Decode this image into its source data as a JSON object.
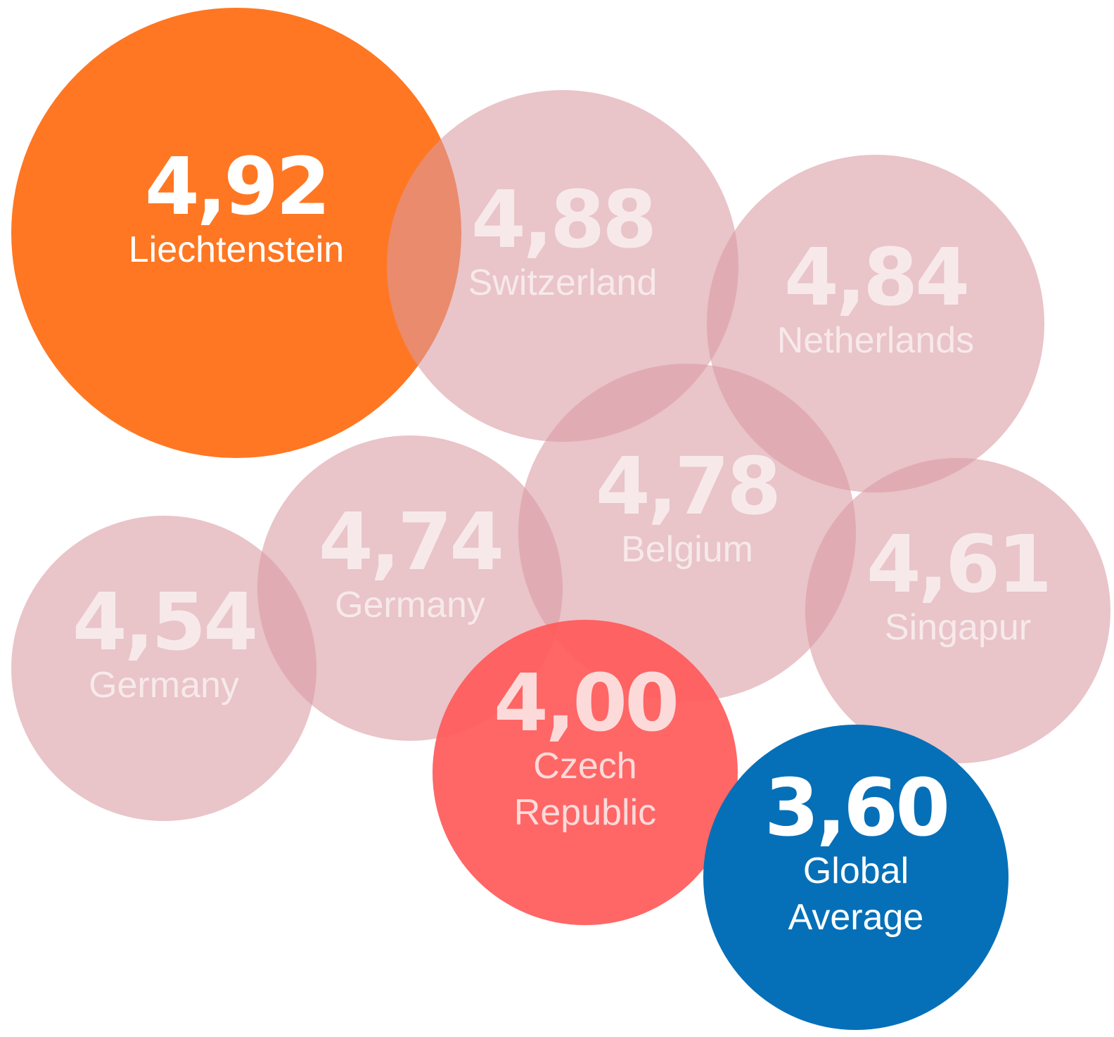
{
  "chart_data": {
    "type": "bubble",
    "categories": [
      "Liechtenstein",
      "Switzerland",
      "Netherlands",
      "Belgium",
      "Singapur",
      "Germany",
      "Germany",
      "Czech Republic",
      "Global Average"
    ],
    "values": [
      4.92,
      4.88,
      4.84,
      4.78,
      4.61,
      4.74,
      4.54,
      4.0,
      3.6
    ],
    "value_labels": [
      "4,92",
      "4,88",
      "4,84",
      "4,78",
      "4,61",
      "4,74",
      "4,54",
      "4,00",
      "3,60"
    ],
    "colors": [
      "#ff7722",
      "#d99aa2",
      "#d99aa2",
      "#d99aa2",
      "#d99aa2",
      "#d99aa2",
      "#d99aa2",
      "#ff5a5a",
      "#0570b8"
    ]
  }
}
